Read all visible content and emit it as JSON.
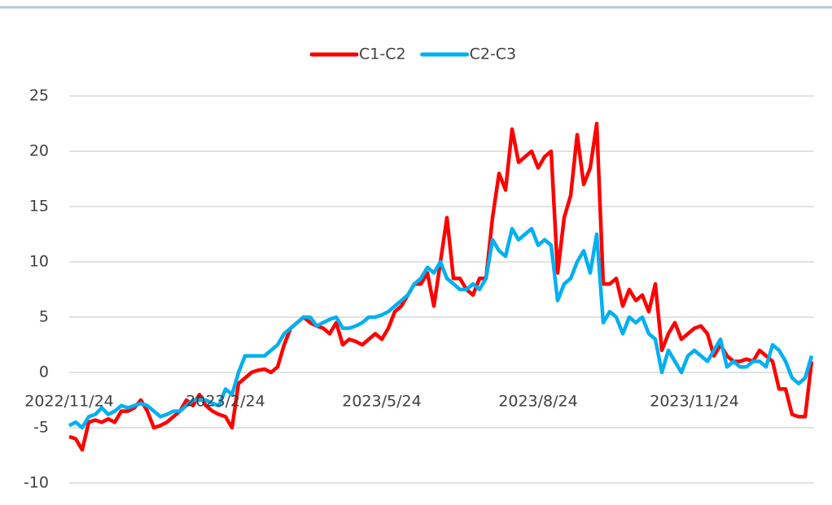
{
  "chart_data": {
    "type": "line",
    "categories": [
      "2022/11/24",
      null,
      null,
      null,
      null,
      null,
      null,
      null,
      null,
      null,
      null,
      null,
      null,
      null,
      null,
      null,
      null,
      null,
      null,
      null,
      null,
      null,
      null,
      null,
      "2023/2/24",
      null,
      null,
      null,
      null,
      null,
      null,
      null,
      null,
      null,
      null,
      null,
      null,
      null,
      null,
      null,
      null,
      null,
      null,
      null,
      null,
      null,
      null,
      null,
      "2023/5/24",
      null,
      null,
      null,
      null,
      null,
      null,
      null,
      null,
      null,
      null,
      null,
      null,
      null,
      null,
      null,
      null,
      null,
      null,
      null,
      null,
      null,
      null,
      null,
      "2023/8/24",
      null,
      null,
      null,
      null,
      null,
      null,
      null,
      null,
      null,
      null,
      null,
      null,
      null,
      null,
      null,
      null,
      null,
      null,
      null,
      null,
      null,
      null,
      null,
      "2023/11/24",
      null,
      null,
      null,
      null,
      null,
      null,
      null,
      null,
      null,
      null,
      null,
      null,
      null,
      null,
      null,
      null,
      null,
      null
    ],
    "series": [
      {
        "name": "C1-C2",
        "color": "#ff0000",
        "values": [
          -5.8,
          -6,
          -7,
          -4.5,
          -4.3,
          -4.5,
          -4.2,
          -4.5,
          -3.5,
          -3.5,
          -3.2,
          -2.5,
          -3.5,
          -5,
          -4.8,
          -4.5,
          -4,
          -3.5,
          -2.5,
          -3,
          -2,
          -3,
          -3.5,
          -3.8,
          -4,
          -5,
          -1,
          -0.5,
          0,
          0.2,
          0.3,
          0,
          0.5,
          2.5,
          4,
          4.5,
          5,
          4.5,
          4.2,
          4,
          3.5,
          4.5,
          2.5,
          3,
          2.8,
          2.5,
          3,
          3.5,
          3,
          4,
          5.5,
          6,
          7,
          8,
          8,
          9,
          6,
          10,
          14,
          8.5,
          8.5,
          7.5,
          7,
          8.5,
          8.5,
          14,
          18,
          16.5,
          22,
          19,
          19.5,
          20,
          18.5,
          19.5,
          20,
          9,
          14,
          16,
          21.5,
          17,
          18.5,
          22.5,
          8,
          8,
          8.5,
          6,
          7.5,
          6.5,
          7,
          5.5,
          8,
          2,
          3.5,
          4.5,
          3,
          3.5,
          4,
          4.2,
          3.5,
          1.5,
          2.5,
          1.5,
          1,
          1,
          1.2,
          1,
          2,
          1.5,
          1,
          -1.5,
          -1.5,
          -3.8,
          -4,
          -4,
          1
        ]
      },
      {
        "name": "C2-C3",
        "color": "#00b0f0",
        "values": [
          -4.8,
          -4.5,
          -5,
          -4,
          -3.8,
          -3.2,
          -3.8,
          -3.5,
          -3,
          -3.2,
          -3,
          -2.8,
          -3,
          -3.5,
          -4,
          -3.8,
          -3.5,
          -3.5,
          -3,
          -2.5,
          -2.5,
          -2.5,
          -2.8,
          -3,
          -1.5,
          -2,
          0,
          1.5,
          1.5,
          1.5,
          1.5,
          2,
          2.5,
          3.5,
          4,
          4.5,
          5,
          5,
          4.2,
          4.5,
          4.8,
          5,
          4,
          4,
          4.2,
          4.5,
          5,
          5,
          5.2,
          5.5,
          6,
          6.5,
          7,
          8,
          8.5,
          9.5,
          9,
          10,
          8.5,
          8,
          7.5,
          7.5,
          8,
          7.5,
          8.5,
          12,
          11,
          10.5,
          13,
          12,
          12.5,
          13,
          11.5,
          12,
          11.5,
          6.5,
          8,
          8.5,
          10,
          11,
          9,
          12.5,
          4.5,
          5.5,
          5,
          3.5,
          5,
          4.5,
          5,
          3.5,
          3,
          0,
          2,
          1,
          0,
          1.5,
          2,
          1.5,
          1,
          2,
          3,
          0.5,
          1,
          0.5,
          0.5,
          1,
          1,
          0.5,
          2.5,
          2,
          1,
          -0.5,
          -1,
          -0.5,
          1.5
        ]
      }
    ],
    "ylim": [
      -10,
      25
    ],
    "yticks": [
      -10,
      -5,
      0,
      5,
      10,
      15,
      20,
      25
    ],
    "grid": true,
    "legend": "top"
  }
}
